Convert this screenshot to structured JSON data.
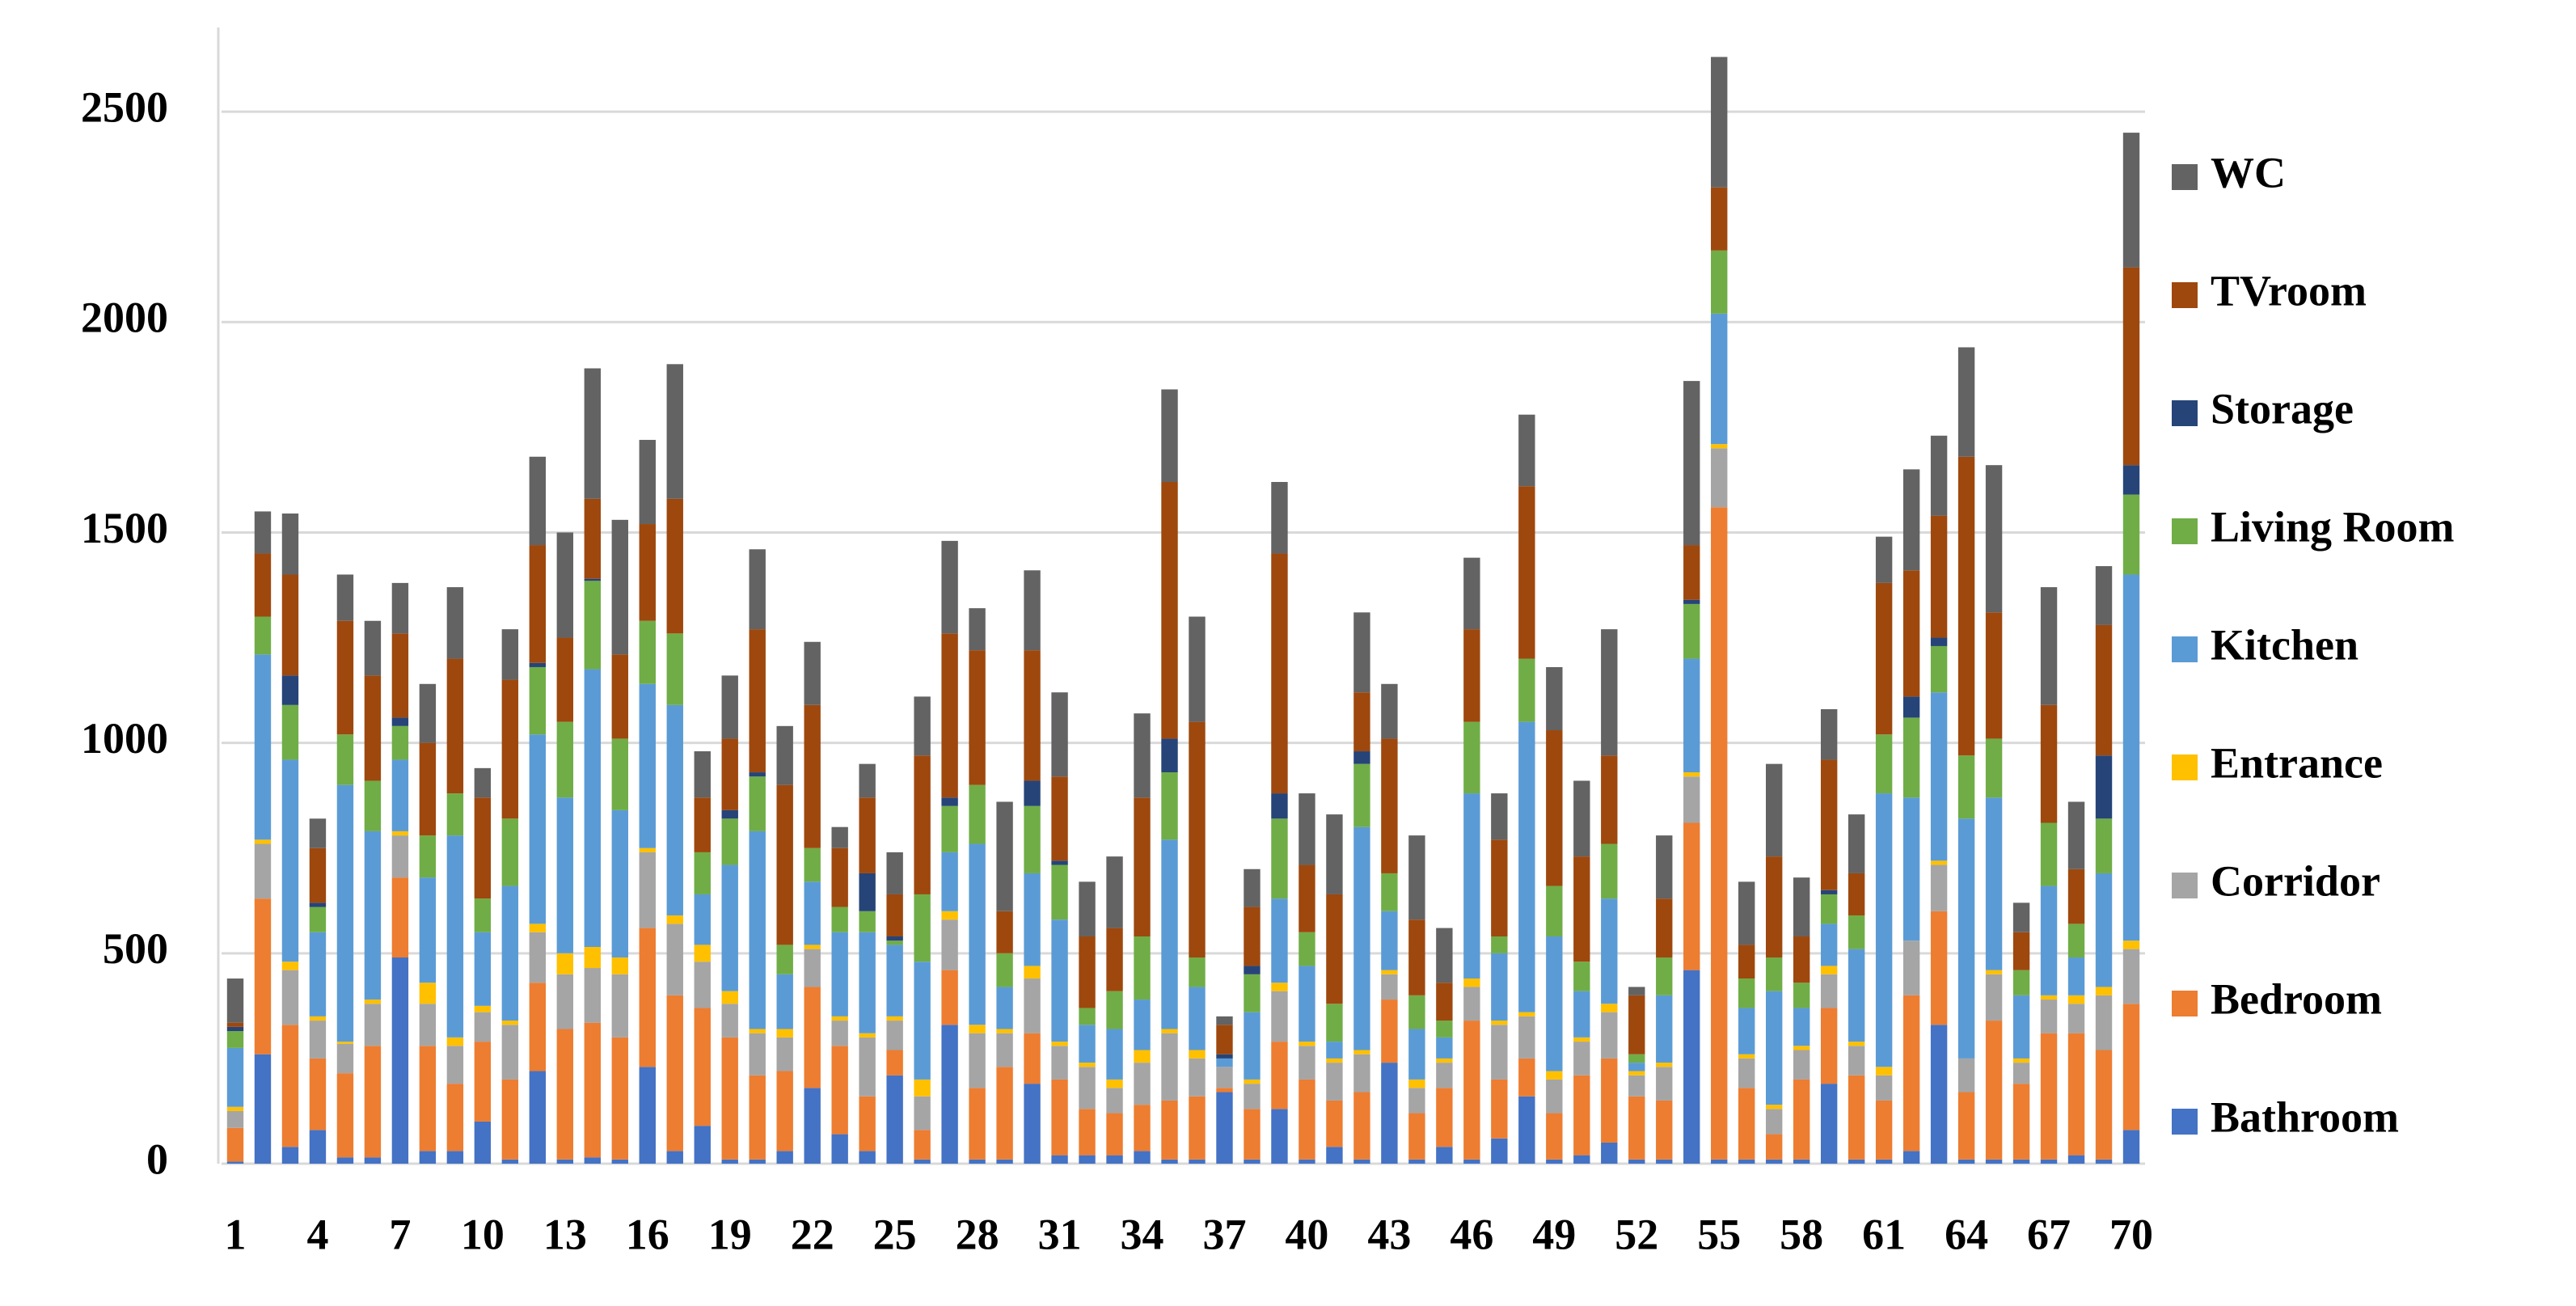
{
  "chart_data": {
    "type": "stacked_bar",
    "categories": [
      1,
      null,
      null,
      4,
      null,
      null,
      7,
      null,
      null,
      10,
      null,
      null,
      13,
      null,
      null,
      16,
      null,
      null,
      19,
      null,
      null,
      22,
      null,
      null,
      25,
      null,
      null,
      28,
      null,
      null,
      31,
      null,
      null,
      34,
      null,
      null,
      37,
      null,
      null,
      40,
      null,
      null,
      43,
      null,
      null,
      46,
      null,
      null,
      49,
      null,
      null,
      52,
      null,
      null,
      55,
      null,
      null,
      58,
      null,
      null,
      61,
      null,
      null,
      64,
      null,
      null,
      67,
      null,
      null,
      70
    ],
    "series": [
      {
        "name": "Bathroom",
        "color": "#4472c4",
        "values": [
          5,
          260,
          40,
          80,
          15,
          15,
          490,
          30,
          30,
          100,
          10,
          220,
          10,
          15,
          10,
          230,
          30,
          90,
          10,
          10,
          30,
          180,
          70,
          30,
          210,
          10,
          330,
          10,
          10,
          190,
          20,
          20,
          20,
          30,
          10,
          10,
          170,
          10,
          130,
          10,
          40,
          10,
          240,
          10,
          40,
          10,
          60,
          160,
          10,
          20,
          50,
          10,
          10,
          460,
          10,
          10,
          10,
          10,
          190,
          10,
          10,
          30,
          330,
          10,
          10,
          10,
          10,
          20,
          10,
          80
        ]
      },
      {
        "name": "Bedroom",
        "color": "#ed7d31",
        "values": [
          80,
          370,
          290,
          170,
          200,
          265,
          190,
          250,
          160,
          190,
          190,
          210,
          310,
          320,
          290,
          330,
          370,
          280,
          290,
          200,
          190,
          240,
          210,
          130,
          60,
          70,
          130,
          170,
          220,
          120,
          180,
          110,
          100,
          110,
          140,
          150,
          10,
          120,
          160,
          190,
          110,
          160,
          150,
          110,
          140,
          330,
          140,
          90,
          110,
          190,
          200,
          150,
          140,
          350,
          1550,
          170,
          60,
          190,
          180,
          200,
          140,
          370,
          270,
          160,
          330,
          180,
          300,
          290,
          260,
          300
        ]
      },
      {
        "name": "Corridor",
        "color": "#a5a5a5",
        "values": [
          40,
          130,
          130,
          90,
          70,
          100,
          100,
          100,
          90,
          70,
          130,
          120,
          130,
          130,
          150,
          180,
          170,
          110,
          80,
          100,
          80,
          90,
          60,
          140,
          70,
          80,
          120,
          130,
          80,
          130,
          80,
          100,
          60,
          100,
          160,
          90,
          50,
          60,
          120,
          80,
          90,
          90,
          60,
          60,
          60,
          80,
          130,
          100,
          80,
          80,
          110,
          50,
          80,
          110,
          140,
          70,
          60,
          70,
          80,
          70,
          60,
          130,
          110,
          80,
          110,
          50,
          80,
          70,
          130,
          130
        ]
      },
      {
        "name": "Entrance",
        "color": "#ffc000",
        "values": [
          10,
          10,
          20,
          10,
          5,
          10,
          10,
          50,
          20,
          15,
          10,
          20,
          50,
          50,
          40,
          10,
          20,
          40,
          30,
          10,
          20,
          10,
          10,
          10,
          10,
          40,
          20,
          20,
          10,
          30,
          10,
          10,
          20,
          30,
          10,
          20,
          0,
          10,
          20,
          10,
          10,
          10,
          10,
          20,
          10,
          20,
          10,
          10,
          20,
          10,
          20,
          10,
          10,
          10,
          10,
          10,
          10,
          10,
          20,
          10,
          20,
          0,
          10,
          0,
          10,
          10,
          10,
          20,
          20,
          20
        ]
      },
      {
        "name": "Kitchen",
        "color": "#5b9bd5",
        "values": [
          140,
          440,
          480,
          200,
          610,
          400,
          170,
          250,
          480,
          175,
          320,
          450,
          370,
          660,
          350,
          390,
          500,
          120,
          300,
          470,
          130,
          150,
          200,
          240,
          170,
          280,
          140,
          430,
          100,
          220,
          290,
          90,
          120,
          120,
          450,
          150,
          20,
          160,
          200,
          180,
          40,
          530,
          140,
          120,
          50,
          440,
          160,
          690,
          320,
          110,
          250,
          20,
          160,
          270,
          310,
          110,
          270,
          90,
          100,
          220,
          650,
          340,
          400,
          570,
          410,
          150,
          260,
          90,
          270,
          870
        ]
      },
      {
        "name": "Living Room",
        "color": "#70ad47",
        "values": [
          40,
          90,
          130,
          60,
          120,
          120,
          80,
          100,
          100,
          80,
          160,
          160,
          180,
          210,
          170,
          150,
          170,
          100,
          110,
          130,
          70,
          80,
          60,
          50,
          10,
          160,
          110,
          140,
          80,
          160,
          130,
          40,
          90,
          150,
          160,
          70,
          0,
          90,
          190,
          80,
          90,
          150,
          90,
          80,
          40,
          170,
          40,
          150,
          120,
          70,
          130,
          20,
          90,
          130,
          150,
          70,
          80,
          60,
          70,
          80,
          140,
          190,
          110,
          150,
          140,
          60,
          150,
          80,
          130,
          190
        ]
      },
      {
        "name": "Storage",
        "color": "#264478",
        "values": [
          10,
          0,
          70,
          10,
          0,
          0,
          20,
          0,
          0,
          0,
          0,
          10,
          0,
          5,
          0,
          0,
          0,
          0,
          20,
          10,
          0,
          0,
          0,
          90,
          10,
          0,
          20,
          0,
          0,
          60,
          10,
          0,
          0,
          0,
          80,
          0,
          10,
          20,
          60,
          0,
          0,
          30,
          0,
          0,
          0,
          0,
          0,
          0,
          0,
          0,
          0,
          0,
          0,
          10,
          0,
          0,
          0,
          0,
          10,
          0,
          0,
          50,
          20,
          0,
          0,
          0,
          0,
          0,
          150,
          70
        ]
      },
      {
        "name": "TVroom",
        "color": "#9e480e",
        "values": [
          10,
          150,
          240,
          130,
          270,
          250,
          200,
          220,
          320,
          240,
          330,
          280,
          200,
          190,
          200,
          230,
          320,
          130,
          170,
          340,
          380,
          340,
          140,
          180,
          100,
          330,
          390,
          320,
          100,
          310,
          200,
          170,
          150,
          330,
          610,
          560,
          70,
          140,
          570,
          160,
          260,
          140,
          320,
          180,
          90,
          220,
          230,
          410,
          370,
          250,
          210,
          140,
          140,
          130,
          150,
          80,
          240,
          110,
          310,
          100,
          360,
          300,
          290,
          710,
          300,
          90,
          280,
          130,
          310,
          470
        ]
      },
      {
        "name": "WC",
        "color": "#636363",
        "values": [
          105,
          100,
          145,
          70,
          110,
          130,
          120,
          140,
          170,
          70,
          120,
          210,
          250,
          310,
          320,
          200,
          320,
          110,
          150,
          190,
          140,
          150,
          50,
          80,
          100,
          140,
          220,
          100,
          260,
          190,
          200,
          130,
          170,
          200,
          220,
          250,
          20,
          90,
          170,
          170,
          190,
          190,
          130,
          200,
          130,
          170,
          110,
          170,
          150,
          180,
          300,
          20,
          150,
          390,
          310,
          150,
          220,
          140,
          120,
          140,
          110,
          240,
          190,
          260,
          350,
          70,
          280,
          160,
          140,
          320
        ]
      }
    ],
    "ylim": [
      0,
      2700
    ],
    "yticks": [
      0,
      500,
      1000,
      1500,
      2000,
      2500
    ],
    "grid": true,
    "legend": "right"
  }
}
